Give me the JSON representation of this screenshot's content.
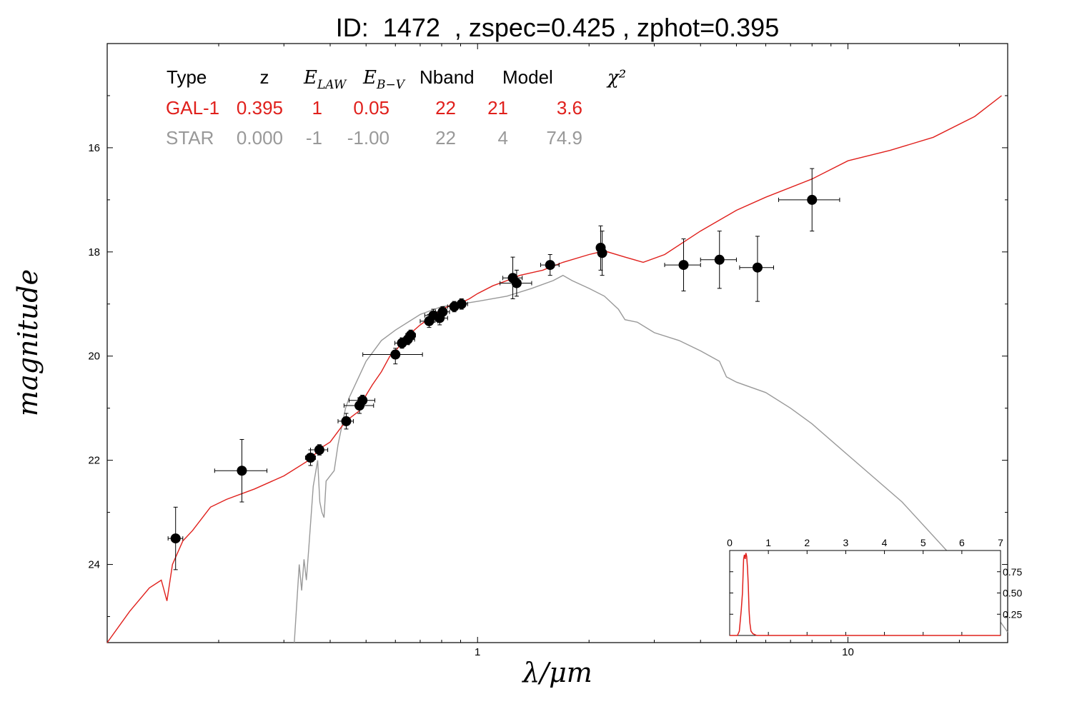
{
  "title": "ID:  1472  , zspec=0.425 , zphot=0.395",
  "chart_data": {
    "type": "scatter",
    "title": "ID:  1472  , zspec=0.425 , zphot=0.395",
    "xlabel": "λ/μm",
    "ylabel": "magnitude",
    "x_scale": "log",
    "xlim": [
      0.1,
      27
    ],
    "ylim": [
      25.5,
      14.0
    ],
    "y_inverted": true,
    "x_tick_labels": [
      "1",
      "10"
    ],
    "y_tick_labels": [
      "16",
      "18",
      "20",
      "22",
      "24"
    ],
    "colors": {
      "galaxy": "#e0201c",
      "star": "#999999",
      "points": "#000000"
    },
    "legend": {
      "headers": [
        "Type",
        "z",
        "E_LAW",
        "E_B-V",
        "Nband",
        "Model",
        "χ²"
      ],
      "rows": [
        {
          "type": "GAL-1",
          "z": "0.395",
          "elaw": "1",
          "ebv": "0.05",
          "nband": "22",
          "model": "21",
          "chi2": "3.6",
          "color": "#e0201c"
        },
        {
          "type": "STAR",
          "z": "0.000",
          "elaw": "-1",
          "ebv": "-1.00",
          "nband": "22",
          "model": "4",
          "chi2": "74.9",
          "color": "#999999"
        }
      ]
    },
    "photometry": [
      {
        "x": 0.153,
        "y": 23.5,
        "xerr": [
          0.146,
          0.16
        ],
        "yerr": [
          22.9,
          24.1
        ]
      },
      {
        "x": 0.231,
        "y": 22.2,
        "xerr": [
          0.195,
          0.27
        ],
        "yerr": [
          21.6,
          22.8
        ]
      },
      {
        "x": 0.354,
        "y": 21.95,
        "xerr": [
          0.343,
          0.365
        ],
        "yerr": [
          21.8,
          22.1
        ]
      },
      {
        "x": 0.374,
        "y": 21.8,
        "xerr": [
          0.354,
          0.394
        ],
        "yerr": [
          21.7,
          21.9
        ]
      },
      {
        "x": 0.442,
        "y": 21.25,
        "xerr": [
          0.42,
          0.462
        ],
        "yerr": [
          21.1,
          21.4
        ]
      },
      {
        "x": 0.48,
        "y": 20.95,
        "xerr": [
          0.436,
          0.524
        ],
        "yerr": [
          20.8,
          21.1
        ]
      },
      {
        "x": 0.489,
        "y": 20.85,
        "xerr": [
          0.45,
          0.528
        ],
        "yerr": [
          20.75,
          20.95
        ]
      },
      {
        "x": 0.6,
        "y": 19.97,
        "xerr": [
          0.49,
          0.71
        ],
        "yerr": [
          19.85,
          20.15
        ]
      },
      {
        "x": 0.625,
        "y": 19.75,
        "xerr": [
          0.598,
          0.652
        ],
        "yerr": [
          19.65,
          19.85
        ]
      },
      {
        "x": 0.648,
        "y": 19.68,
        "xerr": [
          0.62,
          0.676
        ],
        "yerr": [
          19.58,
          19.78
        ]
      },
      {
        "x": 0.66,
        "y": 19.6,
        "xerr": [
          0.64,
          0.68
        ],
        "yerr": [
          19.5,
          19.7
        ]
      },
      {
        "x": 0.74,
        "y": 19.33,
        "xerr": [
          0.7,
          0.78
        ],
        "yerr": [
          19.2,
          19.45
        ]
      },
      {
        "x": 0.76,
        "y": 19.22,
        "xerr": [
          0.72,
          0.8
        ],
        "yerr": [
          19.1,
          19.35
        ]
      },
      {
        "x": 0.79,
        "y": 19.27,
        "xerr": [
          0.75,
          0.83
        ],
        "yerr": [
          19.15,
          19.4
        ]
      },
      {
        "x": 0.805,
        "y": 19.15,
        "xerr": [
          0.77,
          0.84
        ],
        "yerr": [
          19.05,
          19.25
        ]
      },
      {
        "x": 0.865,
        "y": 19.05,
        "xerr": [
          0.83,
          0.9
        ],
        "yerr": [
          18.95,
          19.15
        ]
      },
      {
        "x": 0.905,
        "y": 19.0,
        "xerr": [
          0.87,
          0.94
        ],
        "yerr": [
          18.9,
          19.1
        ]
      },
      {
        "x": 1.245,
        "y": 18.5,
        "xerr": [
          1.17,
          1.32
        ],
        "yerr": [
          18.1,
          18.9
        ]
      },
      {
        "x": 1.275,
        "y": 18.6,
        "xerr": [
          1.15,
          1.4
        ],
        "yerr": [
          18.35,
          18.85
        ]
      },
      {
        "x": 1.57,
        "y": 18.25,
        "xerr": [
          1.48,
          1.66
        ],
        "yerr": [
          18.05,
          18.45
        ]
      },
      {
        "x": 2.15,
        "y": 17.92,
        "xerr": [
          2.1,
          2.2
        ],
        "yerr": [
          17.5,
          18.35
        ]
      },
      {
        "x": 2.17,
        "y": 18.02,
        "xerr": [
          2.12,
          2.22
        ],
        "yerr": [
          17.6,
          18.45
        ]
      },
      {
        "x": 3.6,
        "y": 18.25,
        "xerr": [
          3.2,
          4.0
        ],
        "yerr": [
          17.75,
          18.75
        ]
      },
      {
        "x": 4.5,
        "y": 18.15,
        "xerr": [
          4.0,
          5.0
        ],
        "yerr": [
          17.6,
          18.7
        ]
      },
      {
        "x": 5.7,
        "y": 18.3,
        "xerr": [
          5.1,
          6.3
        ],
        "yerr": [
          17.7,
          18.95
        ]
      },
      {
        "x": 8.0,
        "y": 17.0,
        "xerr": [
          6.5,
          9.5
        ],
        "yerr": [
          16.4,
          17.6
        ]
      }
    ],
    "galaxy_sed": {
      "name": "GAL-1",
      "x": [
        0.1,
        0.115,
        0.13,
        0.14,
        0.145,
        0.15,
        0.16,
        0.17,
        0.19,
        0.21,
        0.25,
        0.3,
        0.35,
        0.38,
        0.4,
        0.43,
        0.45,
        0.48,
        0.5,
        0.52,
        0.55,
        0.58,
        0.6,
        0.65,
        0.7,
        0.75,
        0.8,
        0.85,
        0.9,
        0.95,
        1.0,
        1.1,
        1.2,
        1.3,
        1.5,
        1.7,
        2.0,
        2.2,
        2.5,
        2.8,
        3.2,
        4.0,
        5.0,
        6.0,
        8.0,
        10.0,
        13.0,
        17.0,
        22.0,
        26.0
      ],
      "y": [
        25.5,
        24.9,
        24.45,
        24.3,
        24.7,
        24.0,
        23.55,
        23.35,
        22.9,
        22.75,
        22.55,
        22.3,
        22.0,
        21.75,
        21.65,
        21.35,
        21.2,
        21.05,
        20.75,
        20.55,
        20.3,
        20.0,
        19.9,
        19.6,
        19.4,
        19.25,
        19.1,
        19.02,
        18.98,
        18.9,
        18.8,
        18.65,
        18.55,
        18.45,
        18.35,
        18.2,
        18.05,
        17.98,
        18.1,
        18.2,
        18.05,
        17.6,
        17.2,
        16.95,
        16.6,
        16.25,
        16.05,
        15.8,
        15.4,
        15.0
      ]
    },
    "star_sed": {
      "name": "STAR",
      "x": [
        0.32,
        0.33,
        0.335,
        0.34,
        0.345,
        0.35,
        0.36,
        0.37,
        0.375,
        0.38,
        0.385,
        0.39,
        0.41,
        0.42,
        0.44,
        0.45,
        0.5,
        0.55,
        0.6,
        0.7,
        0.8,
        0.9,
        1.0,
        1.2,
        1.4,
        1.6,
        1.7,
        1.8,
        2.0,
        2.2,
        2.4,
        2.5,
        2.7,
        3.0,
        3.5,
        4.0,
        4.5,
        4.7,
        5.0,
        6.0,
        7.0,
        8.0,
        10.0,
        14.0,
        20.0,
        27.0
      ],
      "y": [
        25.5,
        24.0,
        24.5,
        23.9,
        24.3,
        23.7,
        22.5,
        22.0,
        22.8,
        23.0,
        23.1,
        22.4,
        22.2,
        21.7,
        21.0,
        20.8,
        20.1,
        19.7,
        19.5,
        19.2,
        19.05,
        19.0,
        18.95,
        18.85,
        18.7,
        18.55,
        18.45,
        18.55,
        18.7,
        18.85,
        19.1,
        19.3,
        19.35,
        19.55,
        19.7,
        19.9,
        20.1,
        20.4,
        20.5,
        20.7,
        21.0,
        21.3,
        21.9,
        22.8,
        24.0,
        25.3
      ]
    },
    "inset": {
      "type": "line",
      "xlim": [
        0,
        7
      ],
      "ylim": [
        0,
        1
      ],
      "x_tick_labels": [
        "0",
        "1",
        "2",
        "3",
        "4",
        "5",
        "6",
        "7"
      ],
      "y_tick_labels": [
        "0.25",
        "0.50",
        "0.75"
      ],
      "pdz_x": [
        0,
        0.2,
        0.25,
        0.3,
        0.33,
        0.36,
        0.38,
        0.4,
        0.42,
        0.44,
        0.46,
        0.48,
        0.5,
        0.52,
        0.55,
        0.6,
        0.7,
        1.0,
        7.0
      ],
      "pdz_y": [
        0,
        0,
        0.05,
        0.3,
        0.5,
        0.9,
        0.95,
        0.9,
        0.97,
        0.93,
        0.8,
        0.6,
        0.3,
        0.15,
        0.05,
        0.02,
        0.0,
        0.0,
        0.0
      ]
    }
  }
}
